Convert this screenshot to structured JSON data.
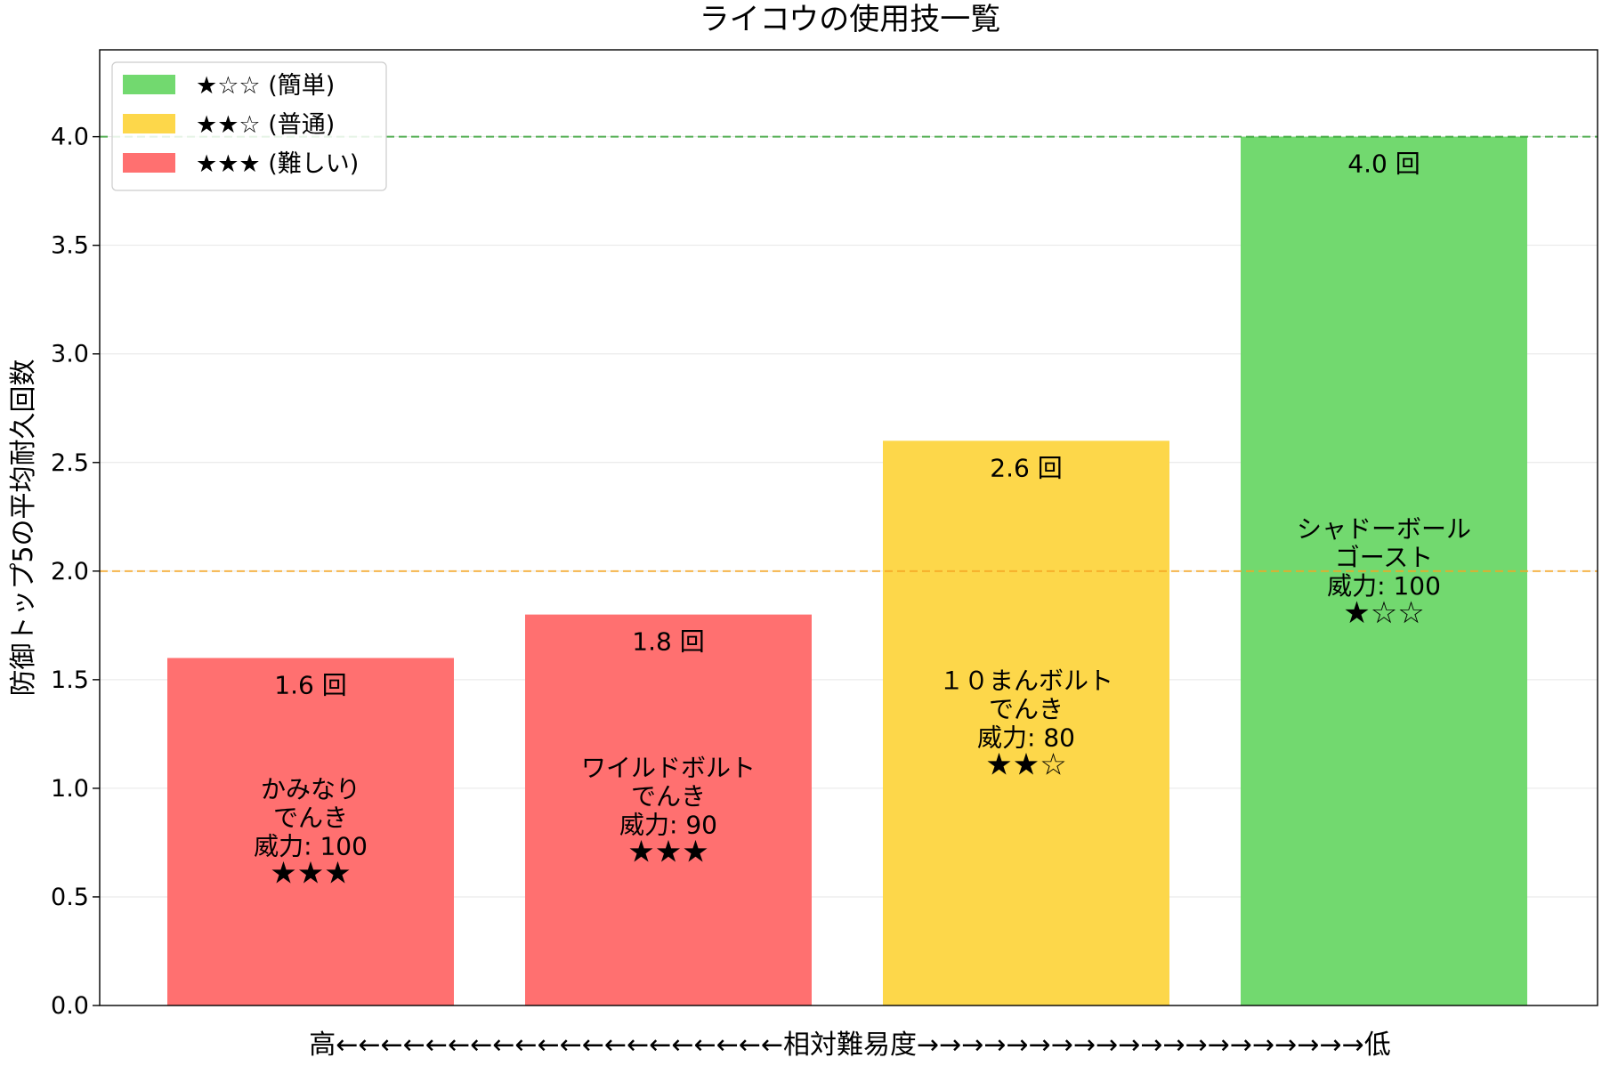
{
  "chart_data": {
    "type": "bar",
    "title": "ライコウの使用技一覧",
    "ylabel": "防御トップ5の平均耐久回数",
    "xlabel": "高←←←←←←←←←←←←←←←←←←←←相対難易度→→→→→→→→→→→→→→→→→→→→低",
    "ylim": [
      0,
      4.4
    ],
    "yticks": [
      "0.0",
      "0.5",
      "1.0",
      "1.5",
      "2.0",
      "2.5",
      "3.0",
      "3.5",
      "4.0"
    ],
    "grid": "horizontal",
    "reference_lines": [
      {
        "value": 4.0,
        "color": "#2ca02c",
        "style": "dashed"
      },
      {
        "value": 2.0,
        "color": "#f5a623",
        "style": "dashed"
      }
    ],
    "legend": {
      "placement": "top-left",
      "items": [
        {
          "label": "★☆☆ (簡単)",
          "color": "#72d96f"
        },
        {
          "label": "★★☆ (普通)",
          "color": "#fdd74a"
        },
        {
          "label": "★★★ (難しい)",
          "color": "#ff7070"
        }
      ]
    },
    "bars": [
      {
        "move": "かみなり",
        "type": "でんき",
        "power": "威力: 100",
        "stars": "★★★",
        "value": 1.6,
        "value_label": "1.6 回",
        "color": "#ff7070"
      },
      {
        "move": "ワイルドボルト",
        "type": "でんき",
        "power": "威力: 90",
        "stars": "★★★",
        "value": 1.8,
        "value_label": "1.8 回",
        "color": "#ff7070"
      },
      {
        "move": "１０まんボルト",
        "type": "でんき",
        "power": "威力: 80",
        "stars": "★★☆",
        "value": 2.6,
        "value_label": "2.6 回",
        "color": "#fdd74a"
      },
      {
        "move": "シャドーボール",
        "type": "ゴースト",
        "power": "威力: 100",
        "stars": "★☆☆",
        "value": 4.0,
        "value_label": "4.0 回",
        "color": "#72d96f"
      }
    ]
  }
}
